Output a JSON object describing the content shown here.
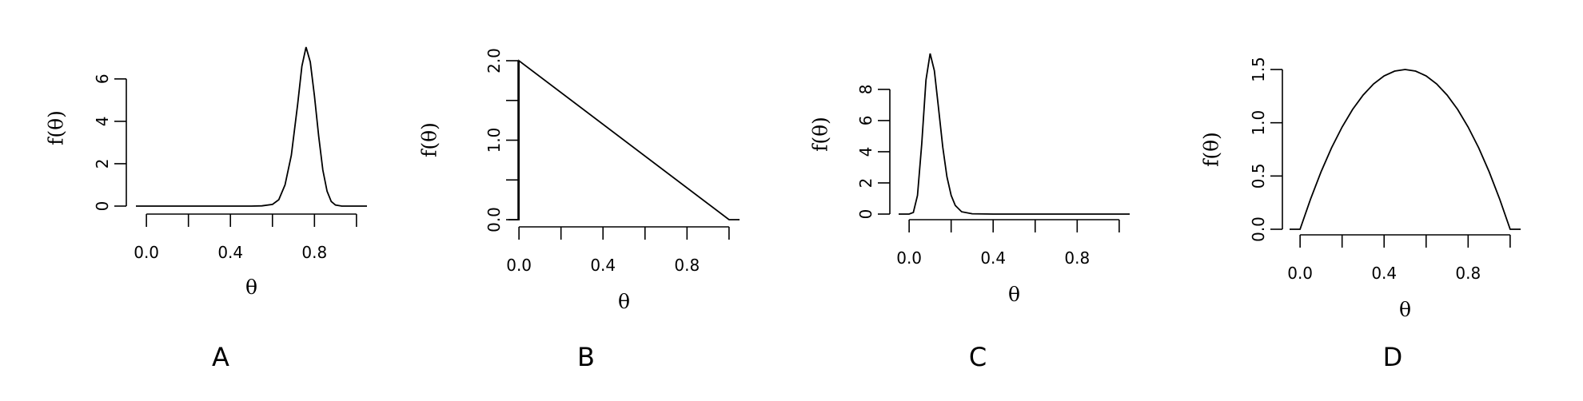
{
  "chart_data": [
    {
      "type": "line",
      "panel_label": "A",
      "xlabel": "θ",
      "ylabel": "f(θ)",
      "xticks": [
        "0.0",
        "0.4",
        "0.8"
      ],
      "yticks": [
        "0",
        "2",
        "4",
        "6"
      ],
      "xlim": [
        -0.05,
        1.05
      ],
      "ylim": [
        0,
        7.5
      ],
      "grid": false,
      "series": [
        {
          "x": [
            -0.05,
            0.0,
            0.1,
            0.2,
            0.3,
            0.4,
            0.5,
            0.55,
            0.6,
            0.63,
            0.66,
            0.69,
            0.72,
            0.74,
            0.76,
            0.78,
            0.8,
            0.82,
            0.84,
            0.86,
            0.88,
            0.9,
            0.93,
            0.96,
            1.0,
            1.05
          ],
          "y": [
            0,
            0,
            0,
            0,
            0,
            0,
            0,
            0.01,
            0.08,
            0.3,
            1.0,
            2.4,
            4.8,
            6.6,
            7.5,
            6.8,
            5.2,
            3.3,
            1.7,
            0.7,
            0.22,
            0.05,
            0.0,
            0.0,
            0.0,
            0.0
          ]
        }
      ]
    },
    {
      "type": "line",
      "panel_label": "B",
      "xlabel": "θ",
      "ylabel": "f(θ)",
      "xticks": [
        "0.0",
        "0.4",
        "0.8"
      ],
      "yticks": [
        "0.0",
        "1.0",
        "2.0"
      ],
      "xlim": [
        -0.05,
        1.05
      ],
      "ylim": [
        0,
        2
      ],
      "grid": false,
      "series": [
        {
          "x": [
            -0.05,
            0.0,
            0.0,
            1.0,
            1.05
          ],
          "y": [
            0,
            0,
            2.0,
            0.0,
            0.0
          ]
        }
      ]
    },
    {
      "type": "line",
      "panel_label": "C",
      "xlabel": "θ",
      "ylabel": "f(θ)",
      "xticks": [
        "0.0",
        "0.4",
        "0.8"
      ],
      "yticks": [
        "0",
        "2",
        "4",
        "6",
        "8"
      ],
      "xlim": [
        -0.05,
        1.05
      ],
      "ylim": [
        0,
        10.3
      ],
      "grid": false,
      "series": [
        {
          "x": [
            -0.05,
            0.0,
            0.02,
            0.04,
            0.06,
            0.08,
            0.1,
            0.12,
            0.14,
            0.16,
            0.18,
            0.2,
            0.22,
            0.25,
            0.3,
            0.4,
            0.6,
            0.8,
            1.0,
            1.05
          ],
          "y": [
            0,
            0,
            0.1,
            1.2,
            4.5,
            8.6,
            10.3,
            9.2,
            6.8,
            4.3,
            2.4,
            1.2,
            0.55,
            0.15,
            0.02,
            0.0,
            0.0,
            0.0,
            0.0,
            0.0
          ]
        }
      ]
    },
    {
      "type": "line",
      "panel_label": "D",
      "xlabel": "θ",
      "ylabel": "f(θ)",
      "xticks": [
        "0.0",
        "0.4",
        "0.8"
      ],
      "yticks": [
        "0.0",
        "0.5",
        "1.0",
        "1.5"
      ],
      "xlim": [
        -0.05,
        1.05
      ],
      "ylim": [
        0,
        1.5
      ],
      "grid": false,
      "series": [
        {
          "x": [
            -0.05,
            0.0,
            0.05,
            0.1,
            0.15,
            0.2,
            0.25,
            0.3,
            0.35,
            0.4,
            0.45,
            0.5,
            0.55,
            0.6,
            0.65,
            0.7,
            0.75,
            0.8,
            0.85,
            0.9,
            0.95,
            1.0,
            1.05
          ],
          "y": [
            0,
            0,
            0.285,
            0.54,
            0.765,
            0.96,
            1.125,
            1.26,
            1.365,
            1.44,
            1.485,
            1.5,
            1.485,
            1.44,
            1.365,
            1.26,
            1.125,
            0.96,
            0.765,
            0.54,
            0.285,
            0,
            0
          ]
        }
      ]
    }
  ]
}
